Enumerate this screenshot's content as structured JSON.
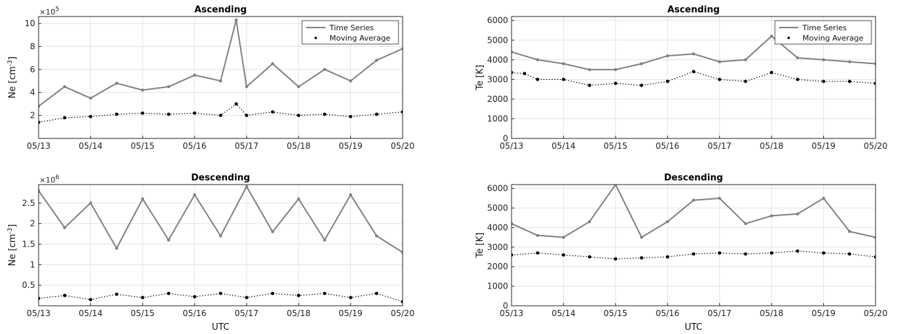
{
  "chart_data": [
    {
      "id": "ne-asc",
      "type": "line",
      "title": "Ascending",
      "ylabel": "Ne [cm-3]",
      "ylabel_base": "Ne [cm",
      "ylabel_sup": "-3",
      "ylabel_end": "]",
      "xlabel": "",
      "exponent_base": "×10",
      "exponent_power": "5",
      "y_scale_factor": 100000,
      "ylim": [
        0.0,
        10.6
      ],
      "yticks": [
        2,
        4,
        6,
        8,
        10
      ],
      "ytick_labels": [
        "2",
        "4",
        "6",
        "8",
        "10"
      ],
      "xlim": [
        0,
        7
      ],
      "xticks": [
        0,
        1,
        2,
        3,
        4,
        5,
        6,
        7
      ],
      "xtick_labels": [
        "05/13",
        "05/14",
        "05/15",
        "05/16",
        "05/17",
        "05/18",
        "05/19",
        "05/20"
      ],
      "legend": {
        "position": "top-right",
        "entries": [
          "Time Series",
          "Moving Average"
        ]
      },
      "grid": true,
      "series": [
        {
          "name": "Time Series",
          "color": "#808080",
          "style": "line",
          "x": [
            0.0,
            0.5,
            1.0,
            1.5,
            2.0,
            2.5,
            3.0,
            3.5,
            3.8,
            4.0,
            4.5,
            5.0,
            5.5,
            6.0,
            6.5,
            7.0
          ],
          "y": [
            2.8,
            4.5,
            3.5,
            4.8,
            4.2,
            4.5,
            5.5,
            5.0,
            10.3,
            4.5,
            6.5,
            4.5,
            6.0,
            5.0,
            6.8,
            7.8
          ]
        },
        {
          "name": "Moving Average",
          "color": "#000000",
          "style": "dots",
          "x": [
            0.0,
            0.5,
            1.0,
            1.5,
            2.0,
            2.5,
            3.0,
            3.5,
            3.8,
            4.0,
            4.5,
            5.0,
            5.5,
            6.0,
            6.5,
            7.0
          ],
          "y": [
            1.4,
            1.8,
            1.9,
            2.1,
            2.2,
            2.1,
            2.2,
            2.0,
            3.0,
            2.0,
            2.3,
            2.0,
            2.1,
            1.9,
            2.1,
            2.3
          ]
        }
      ]
    },
    {
      "id": "te-asc",
      "type": "line",
      "title": "Ascending",
      "ylabel": "Te [K]",
      "xlabel": "",
      "ylim": [
        0,
        6200
      ],
      "yticks": [
        0,
        1000,
        2000,
        3000,
        4000,
        5000,
        6000
      ],
      "ytick_labels": [
        "0",
        "1000",
        "2000",
        "3000",
        "4000",
        "5000",
        "6000"
      ],
      "xlim": [
        0,
        7
      ],
      "xticks": [
        0,
        1,
        2,
        3,
        4,
        5,
        6,
        7
      ],
      "xtick_labels": [
        "05/13",
        "05/14",
        "05/15",
        "05/16",
        "05/17",
        "05/18",
        "05/19",
        "05/20"
      ],
      "legend": {
        "position": "top-right",
        "entries": [
          "Time Series",
          "Moving Average"
        ]
      },
      "grid": true,
      "series": [
        {
          "name": "Time Series",
          "color": "#808080",
          "style": "line",
          "x": [
            0.0,
            0.5,
            1.0,
            1.5,
            2.0,
            2.5,
            3.0,
            3.5,
            4.0,
            4.5,
            5.0,
            5.5,
            6.0,
            6.5,
            7.0
          ],
          "y": [
            4400,
            4000,
            3800,
            3500,
            3500,
            3800,
            4200,
            4300,
            3900,
            4000,
            5200,
            4100,
            4000,
            3900,
            3800
          ]
        },
        {
          "name": "Moving Average",
          "color": "#000000",
          "style": "dots",
          "x": [
            0.0,
            0.25,
            0.5,
            1.0,
            1.5,
            2.0,
            2.5,
            3.0,
            3.5,
            4.0,
            4.5,
            5.0,
            5.5,
            6.0,
            6.5,
            7.0
          ],
          "y": [
            3350,
            3300,
            3000,
            3000,
            2700,
            2800,
            2700,
            2900,
            3400,
            3000,
            2900,
            3350,
            3000,
            2900,
            2900,
            2800
          ]
        }
      ]
    },
    {
      "id": "ne-desc",
      "type": "line",
      "title": "Descending",
      "ylabel": "Ne [cm-3]",
      "ylabel_base": "Ne [cm",
      "ylabel_sup": "-3",
      "ylabel_end": "]",
      "xlabel": "UTC",
      "exponent_base": "×10",
      "exponent_power": "6",
      "y_scale_factor": 1000000,
      "ylim": [
        0.0,
        2.95
      ],
      "yticks": [
        0.5,
        1.0,
        1.5,
        2.0,
        2.5
      ],
      "ytick_labels": [
        "0.5",
        "1",
        "1.5",
        "2",
        "2.5"
      ],
      "xlim": [
        0,
        7
      ],
      "xticks": [
        0,
        1,
        2,
        3,
        4,
        5,
        6,
        7
      ],
      "xtick_labels": [
        "05/13",
        "05/14",
        "05/15",
        "05/16",
        "05/17",
        "05/18",
        "05/19",
        "05/20"
      ],
      "grid": true,
      "series": [
        {
          "name": "Time Series",
          "color": "#808080",
          "style": "line",
          "x": [
            0.0,
            0.5,
            1.0,
            1.5,
            2.0,
            2.5,
            3.0,
            3.5,
            4.0,
            4.5,
            5.0,
            5.5,
            6.0,
            6.5,
            7.0
          ],
          "y": [
            2.8,
            1.9,
            2.5,
            1.4,
            2.6,
            1.6,
            2.7,
            1.7,
            2.9,
            1.8,
            2.6,
            1.6,
            2.7,
            1.7,
            1.3
          ]
        },
        {
          "name": "Moving Average",
          "color": "#000000",
          "style": "dots",
          "x": [
            0.0,
            0.5,
            1.0,
            1.5,
            2.0,
            2.5,
            3.0,
            3.5,
            4.0,
            4.5,
            5.0,
            5.5,
            6.0,
            6.5,
            7.0
          ],
          "y": [
            0.18,
            0.25,
            0.15,
            0.28,
            0.2,
            0.3,
            0.22,
            0.3,
            0.2,
            0.3,
            0.25,
            0.3,
            0.2,
            0.3,
            0.1
          ]
        }
      ]
    },
    {
      "id": "te-desc",
      "type": "line",
      "title": "Descending",
      "ylabel": "Te [K]",
      "xlabel": "UTC",
      "ylim": [
        0,
        6200
      ],
      "yticks": [
        0,
        1000,
        2000,
        3000,
        4000,
        5000,
        6000
      ],
      "ytick_labels": [
        "0",
        "1000",
        "2000",
        "3000",
        "4000",
        "5000",
        "6000"
      ],
      "xlim": [
        0,
        7
      ],
      "xticks": [
        0,
        1,
        2,
        3,
        4,
        5,
        6,
        7
      ],
      "xtick_labels": [
        "05/13",
        "05/14",
        "05/15",
        "05/16",
        "05/17",
        "05/18",
        "05/19",
        "05/20"
      ],
      "grid": true,
      "series": [
        {
          "name": "Time Series",
          "color": "#808080",
          "style": "line",
          "x": [
            0.0,
            0.5,
            1.0,
            1.5,
            2.0,
            2.5,
            3.0,
            3.5,
            4.0,
            4.5,
            5.0,
            5.5,
            6.0,
            6.5,
            7.0
          ],
          "y": [
            4200,
            3600,
            3500,
            4300,
            6200,
            3500,
            4300,
            5400,
            5500,
            4200,
            4600,
            4700,
            5500,
            3800,
            3500
          ]
        },
        {
          "name": "Moving Average",
          "color": "#000000",
          "style": "dots",
          "x": [
            0.0,
            0.5,
            1.0,
            1.5,
            2.0,
            2.5,
            3.0,
            3.5,
            4.0,
            4.5,
            5.0,
            5.5,
            6.0,
            6.5,
            7.0
          ],
          "y": [
            2600,
            2700,
            2600,
            2500,
            2400,
            2450,
            2500,
            2650,
            2700,
            2650,
            2700,
            2800,
            2700,
            2650,
            2500
          ]
        }
      ]
    }
  ]
}
